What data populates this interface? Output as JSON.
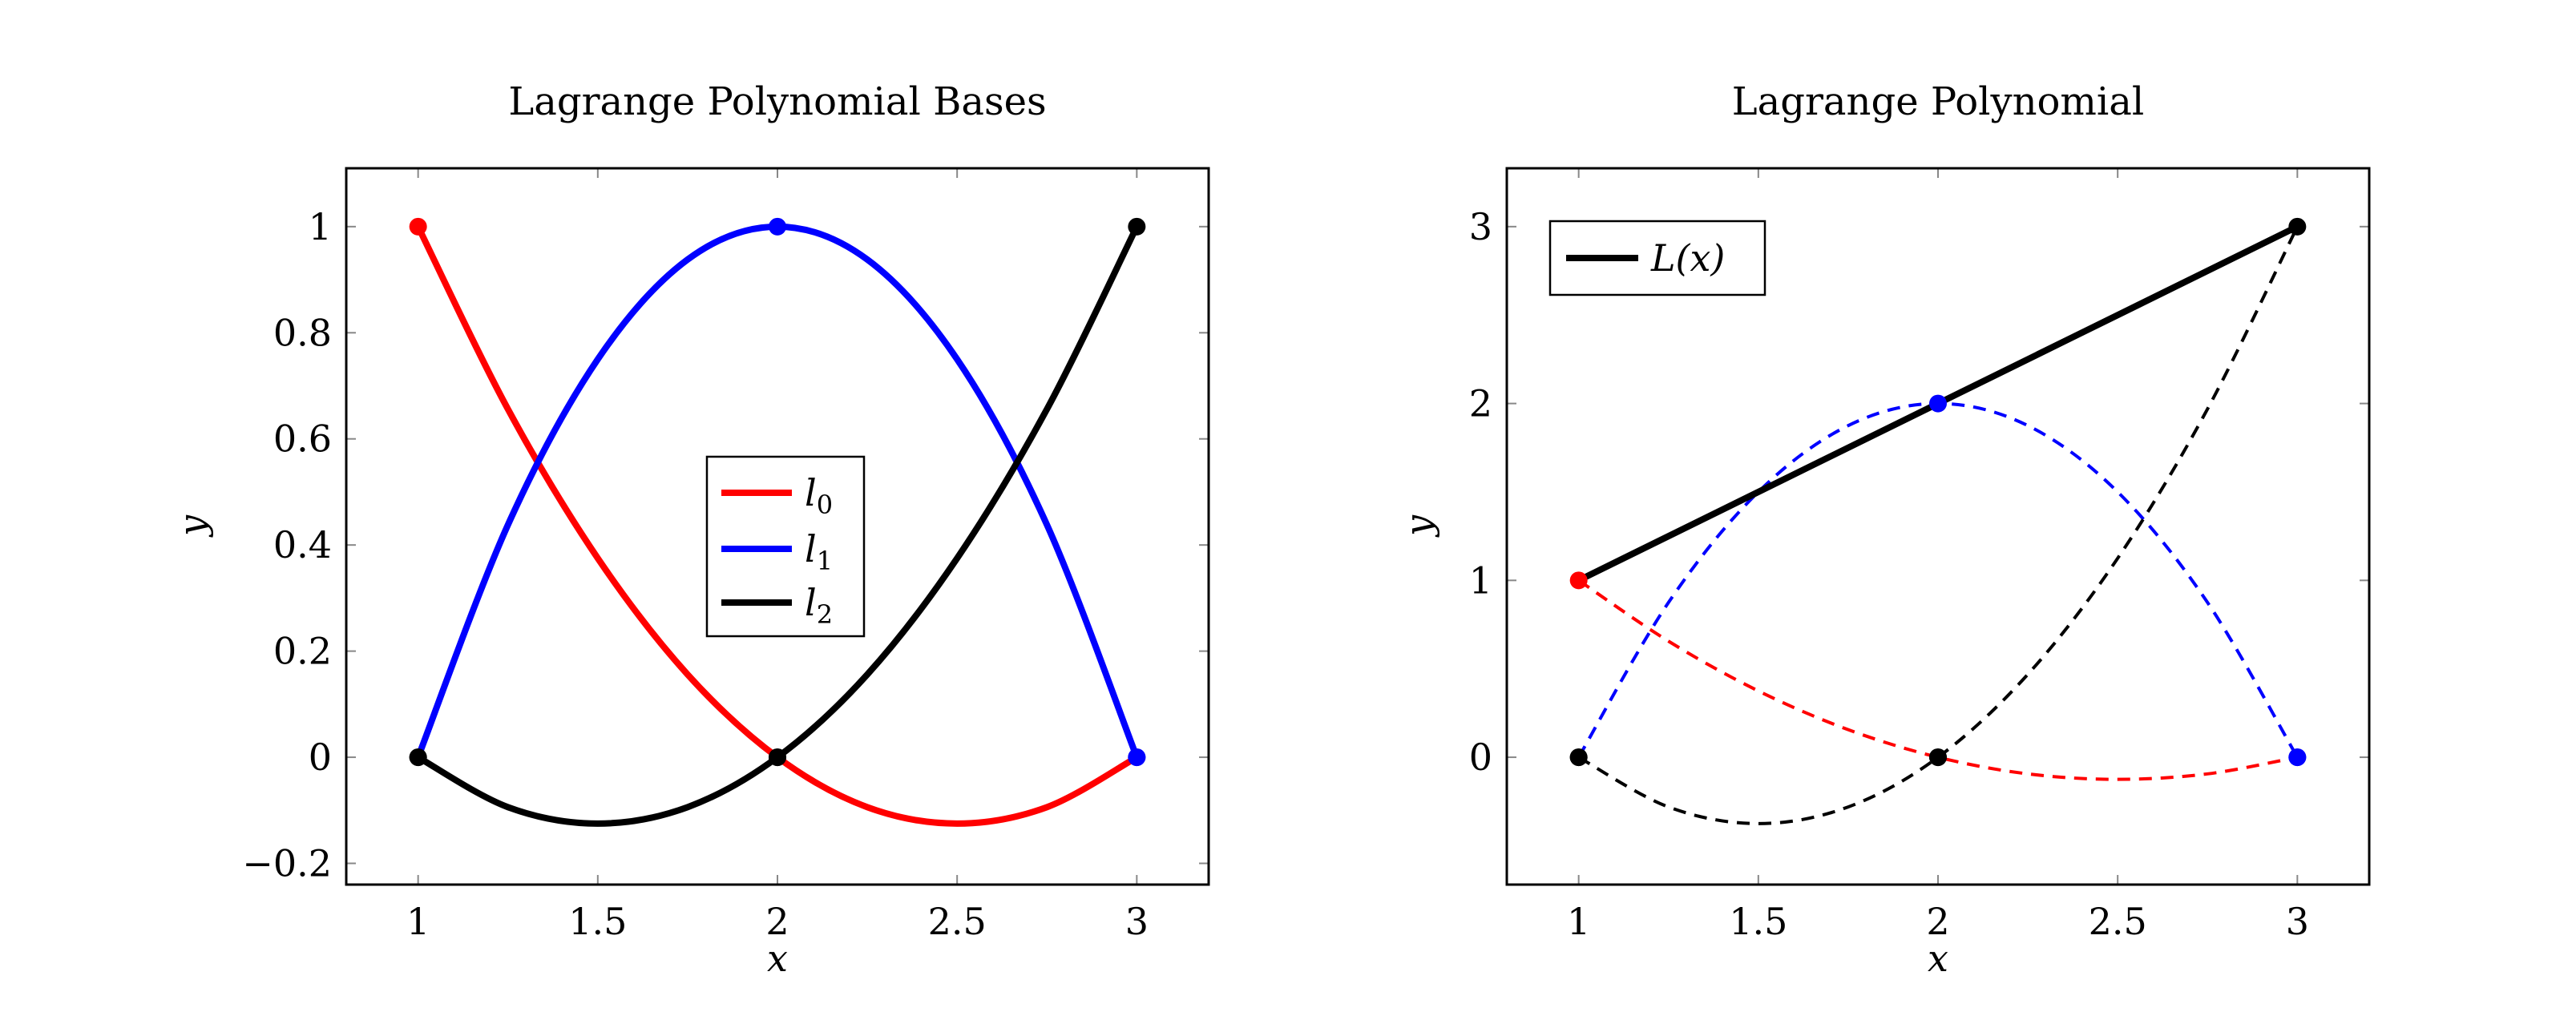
{
  "chart_data": [
    {
      "type": "line",
      "title": "Lagrange Polynomial Bases",
      "xlabel": "x",
      "ylabel": "y",
      "xlim": [
        0.8,
        3.2
      ],
      "ylim": [
        -0.24,
        1.11
      ],
      "xticks": [
        1,
        1.5,
        2,
        2.5,
        3
      ],
      "xtick_labels": [
        "1",
        "1.5",
        "2",
        "2.5",
        "3"
      ],
      "yticks": [
        -0.2,
        0,
        0.2,
        0.4,
        0.6,
        0.8,
        1
      ],
      "ytick_labels": [
        "−0.2",
        "0",
        "0.2",
        "0.4",
        "0.6",
        "0.8",
        "1"
      ],
      "grid": false,
      "legend_position": "center",
      "nodes": [
        1,
        2,
        3
      ],
      "series": [
        {
          "name": "l0",
          "label_base": "l",
          "label_sub": "0",
          "color": "#ff0000",
          "style": "solid",
          "x": [
            1,
            1.25,
            1.5,
            1.75,
            2,
            2.25,
            2.5,
            2.75,
            3
          ],
          "y": [
            1,
            0.656,
            0.375,
            0.156,
            0,
            -0.094,
            -0.125,
            -0.094,
            0
          ],
          "markers": [
            {
              "x": 1,
              "y": 1,
              "color": "#ff0000"
            },
            {
              "x": 2,
              "y": 0,
              "color": "#000000"
            },
            {
              "x": 3,
              "y": 0,
              "color": "#0000ff"
            }
          ]
        },
        {
          "name": "l1",
          "label_base": "l",
          "label_sub": "1",
          "color": "#0000ff",
          "style": "solid",
          "x": [
            1,
            1.25,
            1.5,
            1.75,
            2,
            2.25,
            2.5,
            2.75,
            3
          ],
          "y": [
            0,
            0.438,
            0.75,
            0.938,
            1,
            0.938,
            0.75,
            0.438,
            0
          ],
          "markers": [
            {
              "x": 1,
              "y": 0,
              "color": "#000000"
            },
            {
              "x": 2,
              "y": 1,
              "color": "#0000ff"
            },
            {
              "x": 3,
              "y": 0,
              "color": "#0000ff"
            }
          ]
        },
        {
          "name": "l2",
          "label_base": "l",
          "label_sub": "2",
          "color": "#000000",
          "style": "solid",
          "x": [
            1,
            1.25,
            1.5,
            1.75,
            2,
            2.25,
            2.5,
            2.75,
            3
          ],
          "y": [
            0,
            -0.094,
            -0.125,
            -0.094,
            0,
            0.156,
            0.375,
            0.656,
            1
          ],
          "markers": [
            {
              "x": 1,
              "y": 0,
              "color": "#000000"
            },
            {
              "x": 2,
              "y": 0,
              "color": "#000000"
            },
            {
              "x": 3,
              "y": 1,
              "color": "#000000"
            }
          ]
        }
      ]
    },
    {
      "type": "line",
      "title": "Lagrange Polynomial",
      "xlabel": "x",
      "ylabel": "y",
      "xlim": [
        0.8,
        3.2
      ],
      "ylim": [
        -0.72,
        3.33
      ],
      "xticks": [
        1,
        1.5,
        2,
        2.5,
        3
      ],
      "xtick_labels": [
        "1",
        "1.5",
        "2",
        "2.5",
        "3"
      ],
      "yticks": [
        0,
        1,
        2,
        3
      ],
      "ytick_labels": [
        "0",
        "1",
        "2",
        "3"
      ],
      "grid": false,
      "legend_position": "top-left",
      "series": [
        {
          "name": "L(x)",
          "label_base": "L(x)",
          "label_sub": "",
          "color": "#000000",
          "style": "solid",
          "in_legend": true,
          "x": [
            1,
            2,
            3
          ],
          "y": [
            1,
            2,
            3
          ],
          "markers": [
            {
              "x": 1,
              "y": 1,
              "color": "#ff0000"
            },
            {
              "x": 2,
              "y": 2,
              "color": "#0000ff"
            },
            {
              "x": 3,
              "y": 3,
              "color": "#000000"
            }
          ]
        },
        {
          "name": "",
          "color": "#ff0000",
          "style": "dashed",
          "in_legend": false,
          "x": [
            1,
            1.25,
            1.5,
            1.75,
            2,
            2.25,
            2.5,
            2.75,
            3
          ],
          "y": [
            1,
            0.656,
            0.375,
            0.156,
            0,
            -0.094,
            -0.125,
            -0.094,
            0
          ],
          "markers": [
            {
              "x": 2,
              "y": 0,
              "color": "#000000"
            },
            {
              "x": 3,
              "y": 0,
              "color": "#0000ff"
            }
          ]
        },
        {
          "name": "",
          "color": "#0000ff",
          "style": "dashed",
          "in_legend": false,
          "x": [
            1,
            1.25,
            1.5,
            1.75,
            2,
            2.25,
            2.5,
            2.75,
            3
          ],
          "y": [
            0,
            0.875,
            1.5,
            1.875,
            2,
            1.875,
            1.5,
            0.875,
            0
          ],
          "markers": [
            {
              "x": 1,
              "y": 0,
              "color": "#000000"
            },
            {
              "x": 3,
              "y": 0,
              "color": "#0000ff"
            }
          ]
        },
        {
          "name": "",
          "color": "#000000",
          "style": "dashed",
          "in_legend": false,
          "x": [
            1,
            1.25,
            1.5,
            1.75,
            2,
            2.25,
            2.5,
            2.75,
            3
          ],
          "y": [
            0,
            -0.281,
            -0.375,
            -0.281,
            0,
            0.469,
            1.125,
            1.969,
            3
          ],
          "markers": [
            {
              "x": 1,
              "y": 0,
              "color": "#000000"
            },
            {
              "x": 2,
              "y": 0,
              "color": "#000000"
            }
          ]
        }
      ]
    }
  ]
}
